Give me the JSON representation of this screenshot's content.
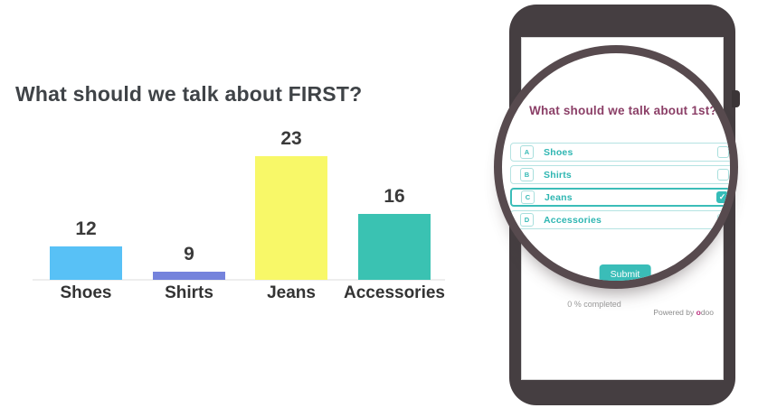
{
  "chart_data": {
    "type": "bar",
    "title": "What should we talk about FIRST?",
    "categories": [
      "Shoes",
      "Shirts",
      "Jeans",
      "Accessories"
    ],
    "values": [
      12,
      9,
      23,
      16
    ],
    "colors": [
      "#58c1f6",
      "#7583dc",
      "#f8f868",
      "#3ac2b2"
    ],
    "xlabel": "",
    "ylabel": "",
    "ylim": [
      8,
      23
    ],
    "grid": false,
    "value_labels": true,
    "legend": "none"
  },
  "phone": {
    "survey": {
      "title": "What should we talk about 1st?",
      "options": [
        {
          "letter": "A",
          "label": "Shoes",
          "checked": false
        },
        {
          "letter": "B",
          "label": "Shirts",
          "checked": false
        },
        {
          "letter": "C",
          "label": "Jeans",
          "checked": true
        },
        {
          "letter": "D",
          "label": "Accessories",
          "checked": false
        }
      ],
      "submit_label": "Submit"
    },
    "footer": {
      "progress": "0 % completed",
      "powered_by": "Powered by ",
      "brand_first": "o",
      "brand_rest": "doo"
    }
  },
  "colors": {
    "teal_accent": "#35bcb8",
    "plum_title": "#8b3f67",
    "phone_body": "#453e41",
    "magnifier_ring": "#574a4e",
    "brand_magenta": "#bb2d7d",
    "chart_title_gray": "#3f4347"
  }
}
